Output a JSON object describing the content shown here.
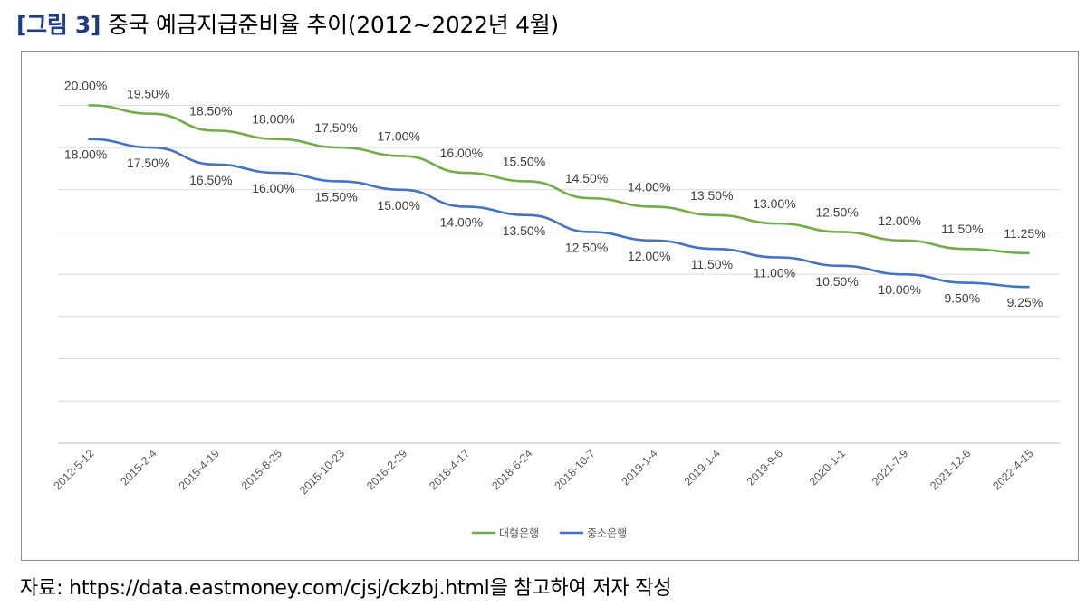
{
  "figure": {
    "label": "[그림 3]",
    "title": "중국 예금지급준비율 추이(2012~2022년 4월)"
  },
  "source": "자료: https://data.eastmoney.com/cjsj/ckzbj.html을 참고하여 저자 작성",
  "chart_data": {
    "type": "line",
    "title": "",
    "xlabel": "",
    "ylabel": "",
    "ylim": [
      0,
      22
    ],
    "grid": true,
    "y_tick_labels_shown": false,
    "legend": "bottom",
    "categories": [
      "2012-5-12",
      "2015-2-4",
      "2015-4-19",
      "2015-8-25",
      "2015-10-23",
      "2016-2-29",
      "2018-4-17",
      "2018-6-24",
      "2018-10-7",
      "2019-1-4",
      "2019-1-4",
      "2019-9-6",
      "2020-1-1",
      "2021-7-9",
      "2021-12-6",
      "2022-4-15"
    ],
    "series": [
      {
        "name": "대형은행",
        "color": "#70ad47",
        "values": [
          20.0,
          19.5,
          18.5,
          18.0,
          17.5,
          17.0,
          16.0,
          15.5,
          14.5,
          14.0,
          13.5,
          13.0,
          12.5,
          12.0,
          11.5,
          11.25
        ],
        "labels": [
          "20.00%",
          "19.50%",
          "18.50%",
          "18.00%",
          "17.50%",
          "17.00%",
          "16.00%",
          "15.50%",
          "14.50%",
          "14.00%",
          "13.50%",
          "13.00%",
          "12.50%",
          "12.00%",
          "11.50%",
          "11.25%"
        ]
      },
      {
        "name": "중소은행",
        "color": "#4472c4",
        "values": [
          18.0,
          17.5,
          16.5,
          16.0,
          15.5,
          15.0,
          14.0,
          13.5,
          12.5,
          12.0,
          11.5,
          11.0,
          10.5,
          10.0,
          9.5,
          9.25
        ],
        "labels": [
          "18.00%",
          "17.50%",
          "16.50%",
          "16.00%",
          "15.50%",
          "15.00%",
          "14.00%",
          "13.50%",
          "12.50%",
          "12.00%",
          "11.50%",
          "11.00%",
          "10.50%",
          "10.00%",
          "9.50%",
          "9.25%"
        ]
      }
    ]
  }
}
